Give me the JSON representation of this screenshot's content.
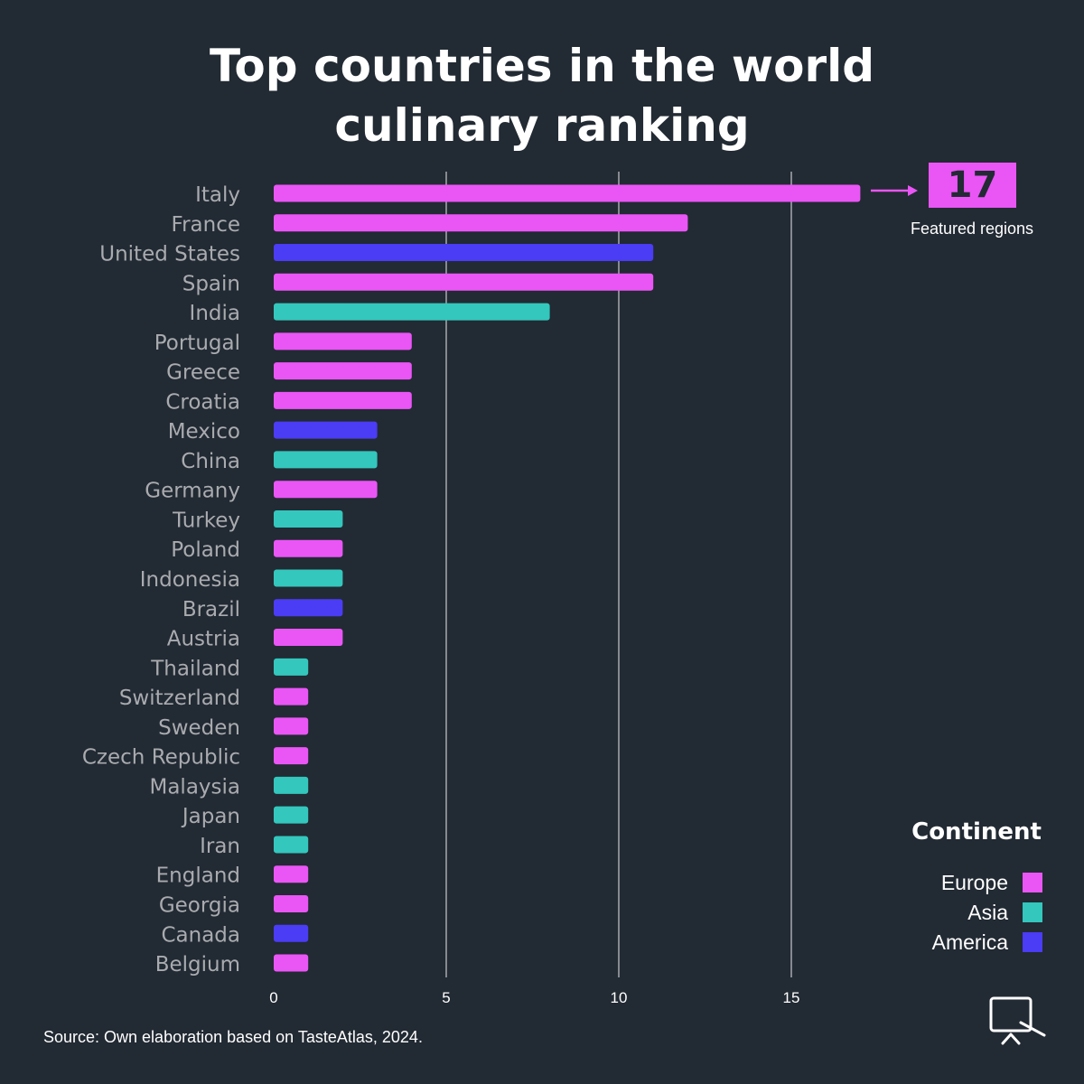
{
  "title": {
    "line1": "Top countries in the world",
    "line2": "culinary ranking"
  },
  "callout": {
    "value": "17",
    "label": "Featured regions"
  },
  "legend": {
    "title": "Continent",
    "items": [
      {
        "label": "Europe",
        "color": "#ea55f6"
      },
      {
        "label": "Asia",
        "color": "#33c7bd"
      },
      {
        "label": "America",
        "color": "#4b3cf5"
      }
    ]
  },
  "source": "Source: Own elaboration based on TasteAtlas, 2024.",
  "logo_icon": "monitor-icon",
  "colors": {
    "background": "#222a33",
    "Europe": "#ea55f6",
    "Asia": "#33c7bd",
    "America": "#4b3cf5",
    "label": "#a9abaf"
  },
  "chart_data": {
    "type": "bar",
    "orientation": "horizontal",
    "title": "Top countries in the world culinary ranking",
    "xlabel": "",
    "ylabel": "",
    "xlim": [
      0,
      17
    ],
    "xticks": [
      0,
      5,
      10,
      15
    ],
    "grid": true,
    "legend_position": "bottom-right",
    "categories": [
      "Italy",
      "France",
      "United States",
      "Spain",
      "India",
      "Portugal",
      "Greece",
      "Croatia",
      "Mexico",
      "China",
      "Germany",
      "Turkey",
      "Poland",
      "Indonesia",
      "Brazil",
      "Austria",
      "Thailand",
      "Switzerland",
      "Sweden",
      "Czech Republic",
      "Malaysia",
      "Japan",
      "Iran",
      "England",
      "Georgia",
      "Canada",
      "Belgium"
    ],
    "values": [
      17,
      12,
      11,
      11,
      8,
      4,
      4,
      4,
      3,
      3,
      3,
      2,
      2,
      2,
      2,
      2,
      1,
      1,
      1,
      1,
      1,
      1,
      1,
      1,
      1,
      1,
      1
    ],
    "continents": [
      "Europe",
      "Europe",
      "America",
      "Europe",
      "Asia",
      "Europe",
      "Europe",
      "Europe",
      "America",
      "Asia",
      "Europe",
      "Asia",
      "Europe",
      "Asia",
      "America",
      "Europe",
      "Asia",
      "Europe",
      "Europe",
      "Europe",
      "Asia",
      "Asia",
      "Asia",
      "Europe",
      "Europe",
      "America",
      "Europe"
    ]
  }
}
